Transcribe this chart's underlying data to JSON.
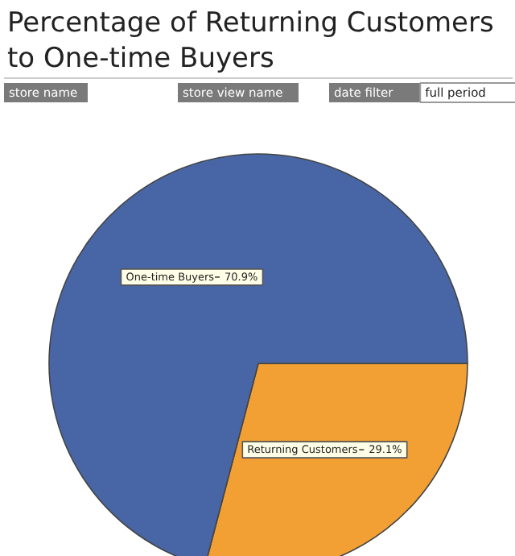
{
  "chart_data": {
    "type": "pie",
    "title": "Percentage of Returning Customers\nto One-time Buyers",
    "categories": [
      "Returning Customers",
      "One-time Buyers"
    ],
    "values": [
      29.1,
      70.9
    ],
    "colors": [
      "#f2a033",
      "#4866a6"
    ],
    "value_labels": [
      "29.1%",
      "70.9%"
    ],
    "annotations": [
      "store name",
      "store view name",
      "date filter",
      "full period"
    ]
  }
}
